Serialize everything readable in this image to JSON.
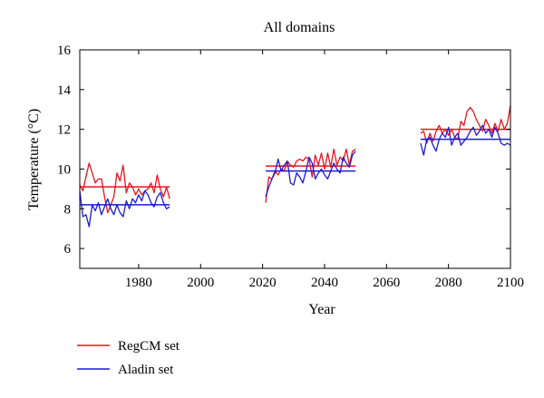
{
  "chart_data": {
    "type": "line",
    "title": "All domains",
    "xlabel": "Year",
    "ylabel": "Temperature (°C)",
    "xlim": [
      1961,
      2100
    ],
    "ylim": [
      5,
      16
    ],
    "xticks": [
      1980,
      2000,
      2020,
      2040,
      2060,
      2080,
      2100
    ],
    "yticks": [
      6,
      8,
      10,
      12,
      14,
      16
    ],
    "grid": false,
    "legend_position": "bottom-left, below plot",
    "series": [
      {
        "name": "RegCM set",
        "color": "#e8141c",
        "segments": [
          {
            "x": [
              1961,
              1962,
              1963,
              1964,
              1965,
              1966,
              1967,
              1968,
              1969,
              1970,
              1971,
              1972,
              1973,
              1974,
              1975,
              1976,
              1977,
              1978,
              1979,
              1980,
              1981,
              1982,
              1983,
              1984,
              1985,
              1986,
              1987,
              1988,
              1989,
              1990
            ],
            "y": [
              9.2,
              8.9,
              9.6,
              10.3,
              9.8,
              9.3,
              9.5,
              9.5,
              8.6,
              7.8,
              8.2,
              8.6,
              9.8,
              9.4,
              10.2,
              8.8,
              9.3,
              9.1,
              8.7,
              9.0,
              8.7,
              8.9,
              9.0,
              9.3,
              8.8,
              9.7,
              9.0,
              8.6,
              9.1,
              8.5
            ]
          },
          {
            "x": [
              2021,
              2022,
              2023,
              2024,
              2025,
              2026,
              2027,
              2028,
              2029,
              2030,
              2031,
              2032,
              2033,
              2034,
              2035,
              2036,
              2037,
              2038,
              2039,
              2040,
              2041,
              2042,
              2043,
              2044,
              2045,
              2046,
              2047,
              2048,
              2049,
              2050
            ],
            "y": [
              8.3,
              9.6,
              9.5,
              9.9,
              9.7,
              10.0,
              9.9,
              10.4,
              10.2,
              10.1,
              10.4,
              10.5,
              10.4,
              10.6,
              10.5,
              9.6,
              10.7,
              10.2,
              10.8,
              10.0,
              10.8,
              10.1,
              11.0,
              10.2,
              10.6,
              10.4,
              11.0,
              10.2,
              10.9,
              11.0
            ]
          },
          {
            "x": [
              2071,
              2072,
              2073,
              2074,
              2075,
              2076,
              2077,
              2078,
              2079,
              2080,
              2081,
              2082,
              2083,
              2084,
              2085,
              2086,
              2087,
              2088,
              2089,
              2090,
              2091,
              2092,
              2093,
              2094,
              2095,
              2096,
              2097,
              2098,
              2099,
              2100
            ],
            "y": [
              11.8,
              11.9,
              11.3,
              11.8,
              11.4,
              11.9,
              12.2,
              11.8,
              12.0,
              11.7,
              12.0,
              11.6,
              11.5,
              12.4,
              12.2,
              12.9,
              13.1,
              12.9,
              12.5,
              12.2,
              11.9,
              12.5,
              12.2,
              11.8,
              12.3,
              11.9,
              12.5,
              12.0,
              12.3,
              13.2
            ]
          }
        ],
        "means": [
          {
            "x": [
              1961,
              1990
            ],
            "y": 9.1
          },
          {
            "x": [
              2021,
              2050
            ],
            "y": 10.15
          },
          {
            "x": [
              2071,
              2100
            ],
            "y": 12.0
          }
        ]
      },
      {
        "name": "Aladin set",
        "color": "#1c1cd4",
        "segments": [
          {
            "x": [
              1961,
              1962,
              1963,
              1964,
              1965,
              1966,
              1967,
              1968,
              1969,
              1970,
              1971,
              1972,
              1973,
              1974,
              1975,
              1976,
              1977,
              1978,
              1979,
              1980,
              1981,
              1982,
              1983,
              1984,
              1985,
              1986,
              1987,
              1988,
              1989,
              1990
            ],
            "y": [
              8.9,
              7.6,
              7.7,
              7.1,
              8.2,
              7.9,
              8.3,
              7.7,
              8.1,
              8.5,
              8.0,
              7.7,
              8.2,
              7.8,
              7.6,
              8.4,
              8.0,
              8.5,
              8.3,
              8.7,
              8.4,
              8.9,
              8.7,
              8.3,
              8.1,
              8.6,
              8.8,
              8.3,
              8.0,
              8.1
            ]
          },
          {
            "x": [
              2021,
              2022,
              2023,
              2024,
              2025,
              2026,
              2027,
              2028,
              2029,
              2030,
              2031,
              2032,
              2033,
              2034,
              2035,
              2036,
              2037,
              2038,
              2039,
              2040,
              2041,
              2042,
              2043,
              2044,
              2045,
              2046,
              2047,
              2048,
              2049,
              2050
            ],
            "y": [
              8.6,
              9.1,
              9.5,
              9.8,
              10.5,
              9.9,
              10.2,
              10.4,
              9.3,
              9.2,
              9.8,
              9.6,
              9.3,
              9.9,
              10.6,
              10.3,
              9.5,
              9.8,
              10.0,
              9.7,
              9.5,
              9.9,
              10.3,
              10.0,
              9.8,
              10.6,
              10.3,
              10.1,
              10.7,
              10.9
            ]
          },
          {
            "x": [
              2071,
              2072,
              2073,
              2074,
              2075,
              2076,
              2077,
              2078,
              2079,
              2080,
              2081,
              2082,
              2083,
              2084,
              2085,
              2086,
              2087,
              2088,
              2089,
              2090,
              2091,
              2092,
              2093,
              2094,
              2095,
              2096,
              2097,
              2098,
              2099,
              2100
            ],
            "y": [
              11.3,
              10.7,
              11.5,
              11.6,
              11.2,
              10.9,
              11.5,
              11.8,
              11.6,
              12.1,
              11.2,
              11.6,
              11.8,
              11.2,
              11.4,
              11.6,
              11.9,
              12.1,
              11.7,
              11.9,
              12.2,
              11.8,
              12.0,
              11.6,
              12.1,
              11.8,
              11.3,
              11.2,
              11.3,
              11.2
            ]
          }
        ],
        "means": [
          {
            "x": [
              1961,
              1990
            ],
            "y": 8.2
          },
          {
            "x": [
              2021,
              2050
            ],
            "y": 9.9
          },
          {
            "x": [
              2071,
              2100
            ],
            "y": 11.5
          }
        ]
      }
    ]
  }
}
